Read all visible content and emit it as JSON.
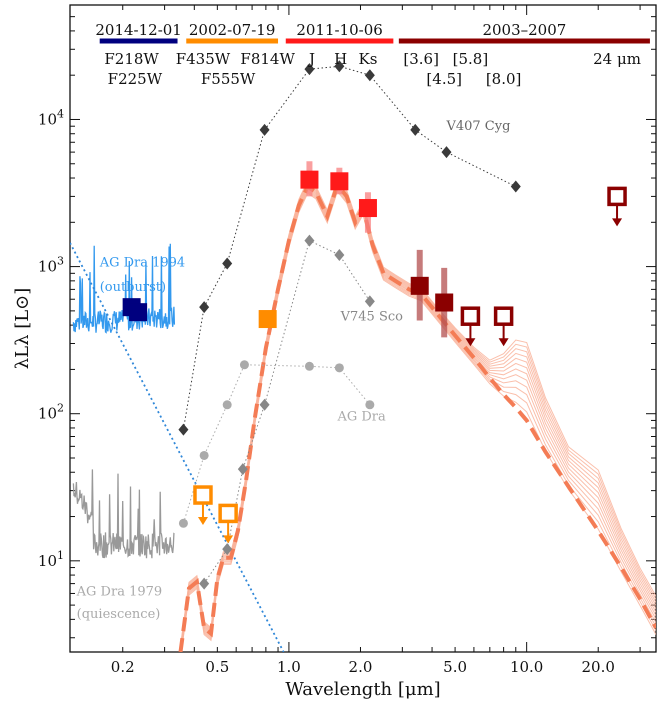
{
  "chart_data": {
    "type": "scatter",
    "title": "",
    "xlabel": "Wavelength [μm]",
    "ylabel": "λLλ [L⊙]",
    "xscale": "log",
    "yscale": "log",
    "xlim": [
      0.12,
      35
    ],
    "ylim": [
      2.4,
      60000
    ],
    "x_ticks": [
      {
        "value": 0.2,
        "label": "0.2"
      },
      {
        "value": 0.5,
        "label": "0.5"
      },
      {
        "value": 1.0,
        "label": "1.0"
      },
      {
        "value": 2.0,
        "label": "2.0"
      },
      {
        "value": 5.0,
        "label": "5.0"
      },
      {
        "value": 10.0,
        "label": "10.0"
      },
      {
        "value": 20.0,
        "label": "20.0"
      }
    ],
    "y_ticks": [
      {
        "value": 10,
        "base": "10",
        "exp": "1"
      },
      {
        "value": 100,
        "base": "10",
        "exp": "2"
      },
      {
        "value": 1000,
        "base": "10",
        "exp": "3"
      },
      {
        "value": 10000,
        "base": "10",
        "exp": "4"
      }
    ],
    "epochs": [
      {
        "label": "2014-12-01",
        "color": "#00007f",
        "x_from": 0.16,
        "x_to": 0.34
      },
      {
        "label": "2002-07-19",
        "color": "#ff8c00",
        "x_from": 0.37,
        "x_to": 0.9
      },
      {
        "label": "2011-10-06",
        "color": "#ff1a1a",
        "x_from": 0.97,
        "x_to": 2.75
      },
      {
        "label": "2003–2007",
        "color": "#8b0000",
        "x_from": 2.9,
        "x_to": 33
      }
    ],
    "filter_labels": [
      {
        "text": "F218W",
        "x": 0.218,
        "row": 1
      },
      {
        "text": "F225W",
        "x": 0.225,
        "row": 2
      },
      {
        "text": "F435W",
        "x": 0.435,
        "row": 1
      },
      {
        "text": "F814W",
        "x": 0.814,
        "row": 1
      },
      {
        "text": "F555W",
        "x": 0.555,
        "row": 2
      },
      {
        "text": "J",
        "x": 1.25,
        "row": 1
      },
      {
        "text": "H",
        "x": 1.65,
        "row": 1
      },
      {
        "text": "Ks",
        "x": 2.15,
        "row": 1
      },
      {
        "text": "[3.6]",
        "x": 3.6,
        "row": 1
      },
      {
        "text": "[5.8]",
        "x": 5.8,
        "row": 1
      },
      {
        "text": "24 μm",
        "x": 24,
        "row": 1
      },
      {
        "text": "[4.5]",
        "x": 4.5,
        "row": 2
      },
      {
        "text": "[8.0]",
        "x": 8.0,
        "row": 2
      }
    ],
    "comparison_series": [
      {
        "name": "V407 Cyg",
        "color": "#3a3a3a",
        "marker": "diamond",
        "x": [
          0.36,
          0.44,
          0.55,
          0.79,
          1.22,
          1.63,
          2.19,
          3.4,
          4.6,
          9.0
        ],
        "y": [
          78,
          530,
          1050,
          8500,
          22000,
          23000,
          20000,
          8500,
          6000,
          3500
        ]
      },
      {
        "name": "V745 Sco",
        "color": "#888888",
        "marker": "diamond",
        "x": [
          0.44,
          0.55,
          0.64,
          0.79,
          1.22,
          1.63,
          2.19
        ],
        "y": [
          7,
          12,
          42,
          115,
          1500,
          1200,
          580
        ]
      },
      {
        "name": "AG Dra",
        "color": "#aaaaaa",
        "marker": "circle",
        "x": [
          0.36,
          0.44,
          0.55,
          0.65,
          1.22,
          1.63,
          2.19
        ],
        "y": [
          18,
          52,
          115,
          215,
          210,
          205,
          115
        ]
      }
    ],
    "annotations": [
      {
        "text": "V407 Cyg",
        "color": "#666666",
        "x": 4.6,
        "y": 8500
      },
      {
        "text": "V745 Sco",
        "color": "#888888",
        "x": 1.65,
        "y": 430
      },
      {
        "text": "AG Dra",
        "color": "#aaaaaa",
        "x": 1.6,
        "y": 90
      },
      {
        "text": "AG Dra 1994",
        "color": "#3399ee",
        "x": 0.16,
        "y": 1000
      },
      {
        "text": "(outburst)",
        "color": "#3399ee",
        "x": 0.16,
        "y": 680
      },
      {
        "text": "AG Dra 1979",
        "color": "#aaaaaa",
        "x": 0.128,
        "y": 5.8
      },
      {
        "text": "(quiescence)",
        "color": "#aaaaaa",
        "x": 0.128,
        "y": 4.1
      }
    ],
    "observed_points": [
      {
        "x": 0.218,
        "y": 530,
        "color": "#00007f"
      },
      {
        "x": 0.232,
        "y": 490,
        "color": "#00007f"
      },
      {
        "x": 0.814,
        "y": 440,
        "color": "#ff8c00"
      },
      {
        "x": 1.22,
        "y": 3900,
        "color": "#ff1a1a"
      },
      {
        "x": 1.63,
        "y": 3800,
        "color": "#ff1a1a"
      },
      {
        "x": 2.15,
        "y": 2500,
        "color": "#ff1a1a"
      },
      {
        "x": 3.55,
        "y": 740,
        "color": "#8b0000"
      },
      {
        "x": 4.5,
        "y": 570,
        "color": "#8b0000"
      }
    ],
    "upper_limits": [
      {
        "x": 0.435,
        "y": 28,
        "color": "#ff8c00"
      },
      {
        "x": 0.555,
        "y": 21,
        "color": "#ff8c00"
      },
      {
        "x": 5.8,
        "y": 460,
        "color": "#8b0000"
      },
      {
        "x": 8.0,
        "y": 460,
        "color": "#8b0000"
      },
      {
        "x": 24.0,
        "y": 3000,
        "color": "#8b0000"
      }
    ],
    "model_sed": {
      "color": "#f47c55",
      "x": [
        0.35,
        0.38,
        0.41,
        0.44,
        0.47,
        0.5,
        0.53,
        0.57,
        0.61,
        0.66,
        0.72,
        0.8,
        0.9,
        1.0,
        1.1,
        1.2,
        1.3,
        1.45,
        1.6,
        1.75,
        1.9,
        2.05,
        2.25,
        2.5,
        2.8,
        3.2,
        3.6,
        4.2,
        5.0,
        6.0,
        7.0,
        8.0,
        9.0,
        10.0,
        12.0,
        15.0,
        20.0,
        25.0,
        30.0,
        35.0
      ],
      "y": [
        2.4,
        6.5,
        7.2,
        3.5,
        3.2,
        7.5,
        10.5,
        10.5,
        16,
        35,
        95,
        280,
        700,
        1500,
        2600,
        3500,
        3200,
        2200,
        3600,
        3000,
        2000,
        2500,
        1400,
        900,
        800,
        700,
        650,
        480,
        340,
        240,
        175,
        135,
        110,
        90,
        55,
        32,
        16,
        9,
        5.5,
        3.5
      ]
    }
  }
}
